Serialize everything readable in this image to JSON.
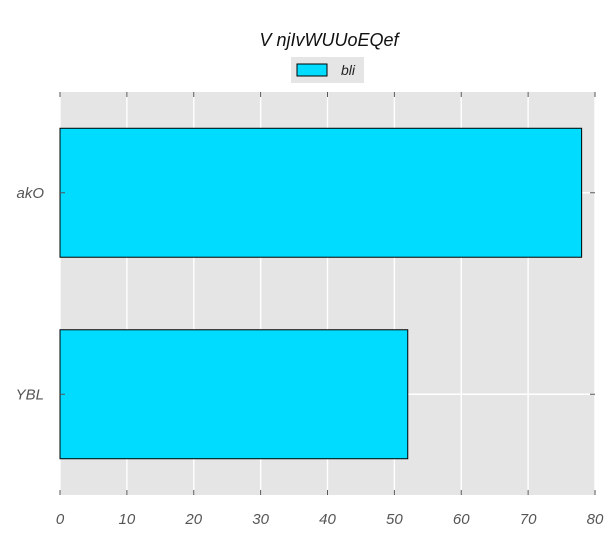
{
  "chart_data": {
    "type": "bar",
    "orientation": "horizontal",
    "title": "V njIvWUUoEQef",
    "xlabel": "",
    "ylabel": "",
    "categories": [
      "akO",
      "YBL"
    ],
    "series": [
      {
        "name": "bli",
        "values": [
          78,
          52
        ],
        "color": "#00dcff"
      }
    ],
    "xlim": [
      0,
      80
    ],
    "xticks": [
      "0",
      "10",
      "20",
      "30",
      "40",
      "50",
      "60",
      "70",
      "80"
    ],
    "grid": true,
    "legend_position": "top-center",
    "background_color": "#e5e5e5",
    "grid_color": "#ffffff",
    "bar_edge_color": "#000000"
  }
}
